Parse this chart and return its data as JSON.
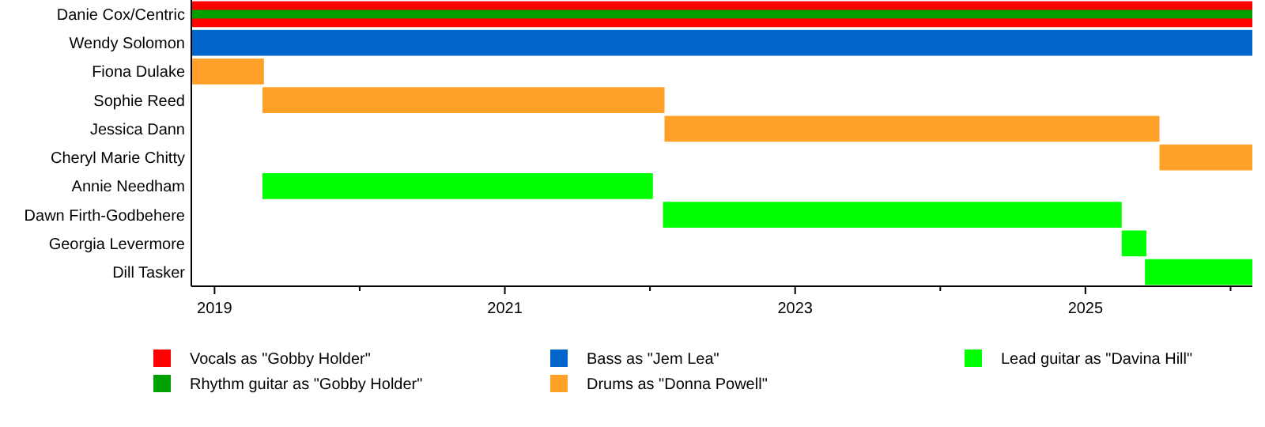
{
  "chart_data": {
    "type": "bar",
    "orientation": "horizontal",
    "categories": [
      "Danie Cox/Centric",
      "Wendy Solomon",
      "Fiona Dulake",
      "Sophie Reed",
      "Jessica Dann",
      "Cheryl Marie Chitty",
      "Annie Needham",
      "Dawn Firth-Godbehere",
      "Georgia Levermore",
      "Dill Tasker"
    ],
    "series": [
      {
        "name": "Vocals as \"Gobby Holder\"",
        "color": "#ff0000",
        "values": [
          7.31,
          null,
          null,
          null,
          null,
          null,
          null,
          null,
          null,
          null
        ],
        "base": [
          2018.84,
          null,
          null,
          null,
          null,
          null,
          null,
          null,
          null,
          null
        ]
      },
      {
        "name": "Rhythm guitar as \"Gobby Holder\"",
        "color": "#00a000",
        "values": [
          7.31,
          null,
          null,
          null,
          null,
          null,
          null,
          null,
          null,
          null
        ],
        "base": [
          2018.84,
          null,
          null,
          null,
          null,
          null,
          null,
          null,
          null,
          null
        ]
      },
      {
        "name": "Bass as \"Jem Lea\"",
        "color": "#0066cc",
        "values": [
          null,
          7.31,
          null,
          null,
          null,
          null,
          null,
          null,
          null,
          null
        ],
        "base": [
          null,
          2018.84,
          null,
          null,
          null,
          null,
          null,
          null,
          null,
          null
        ]
      },
      {
        "name": "Drums as \"Donna Powell\"",
        "color": "#ffa028",
        "values": [
          null,
          null,
          0.5,
          2.77,
          3.41,
          0.64,
          null,
          null,
          null,
          null
        ],
        "base": [
          null,
          null,
          2018.84,
          2019.33,
          2022.1,
          2025.51,
          null,
          null,
          null,
          null
        ]
      },
      {
        "name": "Lead guitar as \"Davina Hill\"",
        "color": "#00ff00",
        "values": [
          null,
          null,
          null,
          null,
          null,
          null,
          2.69,
          3.16,
          0.17,
          0.74
        ],
        "base": [
          null,
          null,
          null,
          null,
          null,
          null,
          2019.33,
          2022.09,
          2025.25,
          2025.41
        ]
      }
    ],
    "xlim": [
      2018.84,
      2026.15
    ],
    "xticks": [
      2019,
      {
        "value": 2020,
        "label": null
      },
      2021,
      {
        "value": 2022,
        "label": null
      },
      2023,
      {
        "value": 2024,
        "label": null
      },
      2025,
      {
        "value": 2026,
        "label": null
      }
    ],
    "grid": false,
    "legend": "bottom"
  }
}
